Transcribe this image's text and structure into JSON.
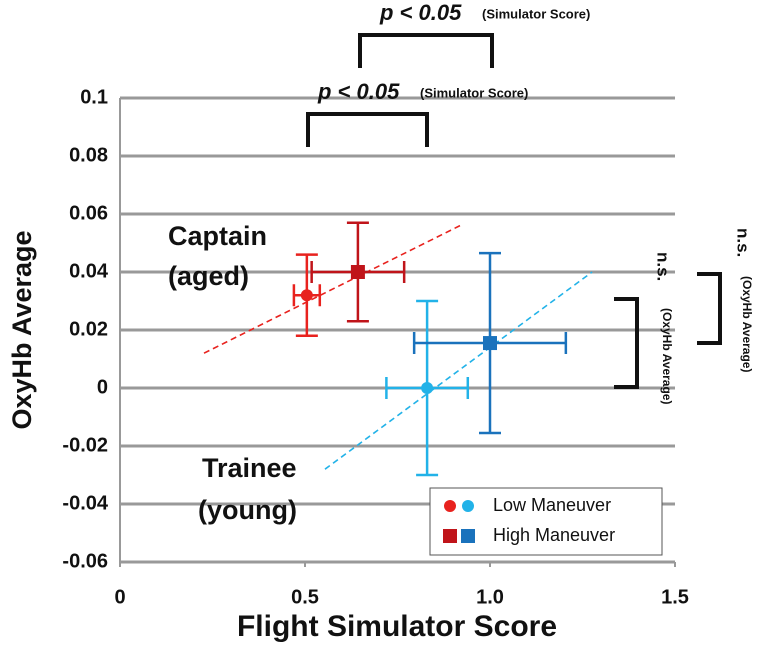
{
  "chart_data": {
    "type": "scatter",
    "x_label": "Flight Simulator Score",
    "y_label": "OxyHb Average",
    "xlim": [
      0,
      1.5
    ],
    "ylim": [
      -0.06,
      0.1
    ],
    "xticks": [
      0,
      0.5,
      {
        "value": 1.0,
        "label": "1.0"
      },
      1.5
    ],
    "yticks": [
      0.1,
      0.08,
      0.06,
      0.04,
      0.02,
      0,
      -0.02,
      -0.04,
      -0.06
    ],
    "grid": true,
    "series": [
      {
        "marker": "circle",
        "color": "#e8221e",
        "x": [
          0.505
        ],
        "values": [
          0.032
        ],
        "xerr": [
          0.035
        ],
        "yerr": [
          0.014
        ]
      },
      {
        "marker": "square",
        "color": "#c0141a",
        "x": [
          0.643
        ],
        "values": [
          0.04
        ],
        "xerr": [
          0.125
        ],
        "yerr": [
          0.017
        ]
      },
      {
        "marker": "circle",
        "color": "#22b2e8",
        "x": [
          0.83
        ],
        "values": [
          0.0
        ],
        "xerr": [
          0.11
        ],
        "yerr": [
          0.03
        ]
      },
      {
        "marker": "square",
        "color": "#1a72bc",
        "x": [
          1.0
        ],
        "values": [
          0.0155
        ],
        "xerr": [
          0.205
        ],
        "yerr": [
          0.031
        ]
      }
    ],
    "trendlines": [
      {
        "color": "#e8221e",
        "x": [
          0.227,
          0.927
        ],
        "values": [
          0.012,
          0.0565
        ]
      },
      {
        "color": "#22b2e8",
        "x": [
          0.554,
          1.276
        ],
        "values": [
          -0.028,
          0.04
        ]
      }
    ],
    "legend": [
      {
        "label": "Low Maneuver",
        "marker": "circle",
        "colors": [
          "#e8221e",
          "#22b2e8"
        ]
      },
      {
        "label": "High Maneuver",
        "marker": "square",
        "colors": [
          "#c0141a",
          "#1a72bc"
        ]
      }
    ],
    "annotations": [
      {
        "label": "p < 0.05",
        "note": "(Simulator Score)"
      },
      {
        "label": "p < 0.05",
        "note": "(Simulator Score)"
      },
      {
        "label": "n.s.",
        "note": "(OxyHb Average)"
      },
      {
        "label": "n.s.",
        "note": "(OxyHb Average)"
      },
      {
        "text": "Captain"
      },
      {
        "text": "(aged)"
      },
      {
        "text": "Trainee"
      },
      {
        "text": "(young)"
      }
    ]
  }
}
